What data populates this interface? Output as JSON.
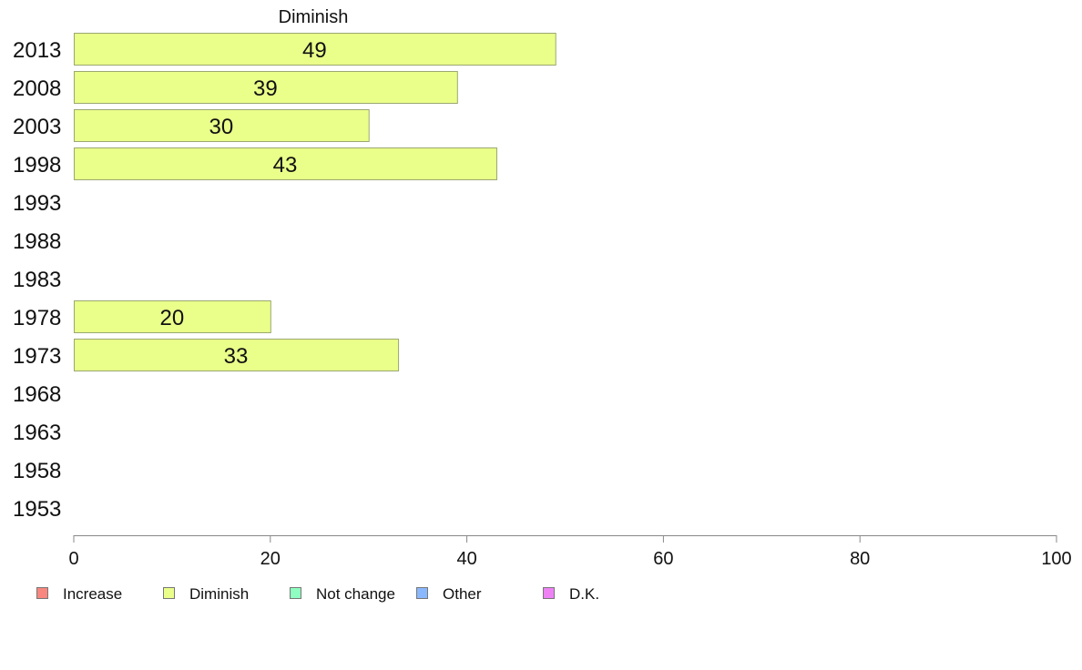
{
  "chart_data": {
    "type": "bar",
    "orientation": "horizontal",
    "title": "Diminish",
    "categories": [
      "2013",
      "2008",
      "2003",
      "1998",
      "1993",
      "1988",
      "1983",
      "1978",
      "1973",
      "1968",
      "1963",
      "1958",
      "1953"
    ],
    "series": [
      {
        "name": "Diminish",
        "color": "#eaff8a",
        "values": [
          49,
          39,
          30,
          43,
          null,
          null,
          null,
          20,
          33,
          null,
          null,
          null,
          null
        ]
      }
    ],
    "xlim": [
      0,
      100
    ],
    "xticks": [
      0,
      20,
      40,
      60,
      80,
      100
    ],
    "grid": false,
    "legend": {
      "placement": "bottom-left",
      "items": [
        {
          "label": "Increase",
          "color": "#f7877f"
        },
        {
          "label": "Diminish",
          "color": "#eaff8a"
        },
        {
          "label": "Not change",
          "color": "#8effc0"
        },
        {
          "label": "Other",
          "color": "#8ab8ff"
        },
        {
          "label": "D.K.",
          "color": "#ee82f5"
        }
      ]
    }
  }
}
